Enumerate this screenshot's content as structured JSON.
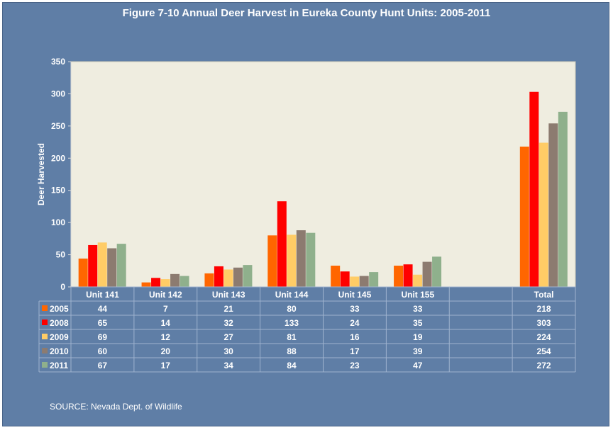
{
  "title": "Figure 7-10 Annual Deer Harvest in Eureka County Hunt Units: 2005-2011",
  "source": "SOURCE: Nevada Dept. of Wildlife",
  "chart_data": {
    "type": "bar",
    "title": "Figure 7-10 Annual Deer Harvest in Eureka County Hunt Units: 2005-2011",
    "xlabel": "",
    "ylabel": "Deer Harvested",
    "ylim": [
      0,
      350
    ],
    "yticks": [
      0,
      50,
      100,
      150,
      200,
      250,
      300,
      350
    ],
    "categories": [
      "Unit 141",
      "Unit 142",
      "Unit 143",
      "Unit 144",
      "Unit 145",
      "Unit 155",
      "",
      "Total"
    ],
    "series": [
      {
        "name": "2005",
        "color": "#ff6600",
        "values": [
          44,
          7,
          21,
          80,
          33,
          33,
          null,
          218
        ]
      },
      {
        "name": "2008",
        "color": "#ff0000",
        "values": [
          65,
          14,
          32,
          133,
          24,
          35,
          null,
          303
        ]
      },
      {
        "name": "2009",
        "color": "#ffcc66",
        "values": [
          69,
          12,
          27,
          81,
          16,
          19,
          null,
          224
        ]
      },
      {
        "name": "2010",
        "color": "#8c7b70",
        "values": [
          60,
          20,
          30,
          88,
          17,
          39,
          null,
          254
        ]
      },
      {
        "name": "2011",
        "color": "#8fb08c",
        "values": [
          67,
          17,
          34,
          84,
          23,
          47,
          null,
          272
        ]
      }
    ],
    "grid": false,
    "legend": "data-table",
    "plot_background": "#efede0"
  }
}
